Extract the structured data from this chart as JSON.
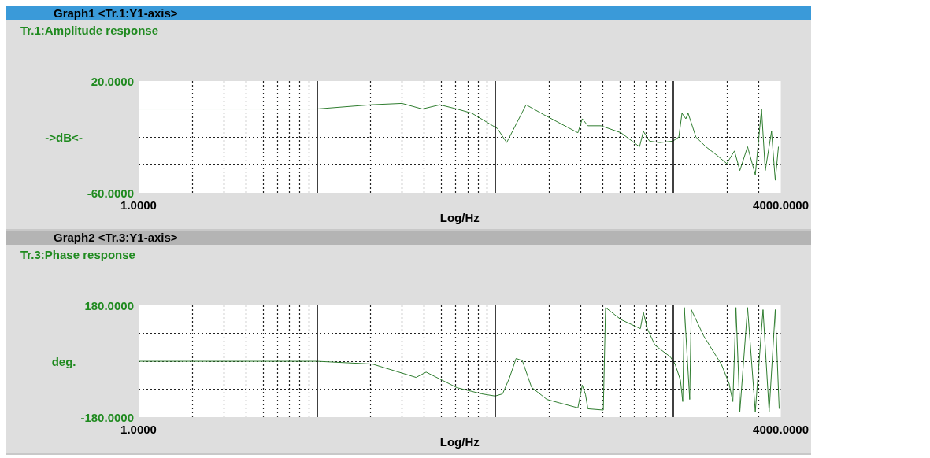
{
  "chart_data": [
    {
      "type": "line",
      "title": "Graph1 <Tr.1:Y1-axis>",
      "subtitle": "Tr.1:Amplitude response",
      "xlabel": "Log/Hz",
      "ylabel": "->dB<-",
      "color": "#2f7d2f",
      "log": "x",
      "grid": true,
      "x": [
        1,
        2,
        5,
        10,
        20,
        30,
        39,
        49,
        61,
        74,
        97,
        103,
        116,
        125,
        149,
        187,
        291,
        308,
        331,
        392,
        508,
        645,
        678,
        734,
        836,
        991,
        1072,
        1116,
        1173,
        1208,
        1336,
        1520,
        1748,
        1990,
        2198,
        2357,
        2604,
        2877,
        3118,
        3273,
        3548,
        3724,
        3880
      ],
      "values": [
        0,
        0,
        0,
        0,
        3,
        4,
        0,
        3,
        0,
        -3,
        -12,
        -14,
        -24,
        -16,
        3,
        -4,
        -17,
        -7,
        -12,
        -12,
        -17,
        -27,
        -16,
        -23,
        -24,
        -23,
        -20,
        -3,
        -7,
        -3,
        -20,
        -27,
        -33,
        -39,
        -30,
        -44,
        -27,
        -47,
        0,
        -44,
        -16,
        -51,
        -27
      ],
      "xlim": [
        1,
        4000
      ],
      "ylim": [
        -60,
        20
      ],
      "xticks": [
        {
          "value": 1,
          "label": "1.0000"
        },
        {
          "value": 2,
          "label": null
        },
        {
          "value": 3,
          "label": null
        },
        {
          "value": 4,
          "label": null
        },
        {
          "value": 5,
          "label": null
        },
        {
          "value": 6,
          "label": null
        },
        {
          "value": 7,
          "label": null
        },
        {
          "value": 8,
          "label": null
        },
        {
          "value": 9,
          "label": null
        },
        {
          "value": 20,
          "label": null
        },
        {
          "value": 30,
          "label": null
        },
        {
          "value": 40,
          "label": null
        },
        {
          "value": 50,
          "label": null
        },
        {
          "value": 60,
          "label": null
        },
        {
          "value": 70,
          "label": null
        },
        {
          "value": 80,
          "label": null
        },
        {
          "value": 90,
          "label": null
        },
        {
          "value": 200,
          "label": null
        },
        {
          "value": 300,
          "label": null
        },
        {
          "value": 400,
          "label": null
        },
        {
          "value": 500,
          "label": null
        },
        {
          "value": 600,
          "label": null
        },
        {
          "value": 700,
          "label": null
        },
        {
          "value": 800,
          "label": null
        },
        {
          "value": 900,
          "label": null
        },
        {
          "value": 2000,
          "label": null
        },
        {
          "value": 3000,
          "label": null
        },
        {
          "value": 4000,
          "label": "4000.0000"
        }
      ],
      "yticks": [
        {
          "value": 20,
          "label": "20.0000"
        },
        {
          "value": 0,
          "label": null
        },
        {
          "value": -20,
          "label": null
        },
        {
          "value": -40,
          "label": null
        },
        {
          "value": -60,
          "label": "-60.0000"
        }
      ],
      "ref_lines": [
        {
          "axis": "x",
          "value": 10,
          "color": "#000000",
          "line_style": "solid"
        },
        {
          "axis": "x",
          "value": 100,
          "color": "#000000",
          "line_style": "solid"
        },
        {
          "axis": "x",
          "value": 1000,
          "color": "#000000",
          "line_style": "solid"
        }
      ]
    },
    {
      "type": "line",
      "title": "Graph2 <Tr.3:Y1-axis>",
      "subtitle": "Tr.3:Phase response",
      "xlabel": "Log/Hz",
      "ylabel": "deg.",
      "color": "#2f7d2f",
      "log": "x",
      "grid": true,
      "x": [
        1,
        2,
        5,
        10,
        20.5,
        36,
        41,
        61,
        84,
        100,
        110,
        120,
        131,
        142,
        160,
        195,
        229,
        291,
        308,
        321,
        331,
        404,
        416,
        508,
        652,
        678,
        713,
        787,
        961,
        1021,
        1094,
        1127,
        1151,
        1233,
        1259,
        1476,
        1679,
        1854,
        2049,
        2153,
        2242,
        2357,
        2604,
        2877,
        3179,
        3440,
        3724,
        3917
      ],
      "values": [
        0,
        0,
        0,
        0,
        -9,
        -52,
        -35,
        -85,
        -105,
        -112,
        -105,
        -55,
        9,
        2,
        -84,
        -123,
        -134,
        -150,
        -77,
        -107,
        -153,
        -157,
        173,
        134,
        105,
        157,
        105,
        52,
        14,
        -9,
        -61,
        -130,
        173,
        -123,
        166,
        82,
        30,
        -9,
        -71,
        -130,
        173,
        -162,
        173,
        -162,
        166,
        -162,
        166,
        -153
      ],
      "xlim": [
        1,
        4000
      ],
      "ylim": [
        -180,
        180
      ],
      "xticks": [
        {
          "value": 1,
          "label": "1.0000"
        },
        {
          "value": 2,
          "label": null
        },
        {
          "value": 3,
          "label": null
        },
        {
          "value": 4,
          "label": null
        },
        {
          "value": 5,
          "label": null
        },
        {
          "value": 6,
          "label": null
        },
        {
          "value": 7,
          "label": null
        },
        {
          "value": 8,
          "label": null
        },
        {
          "value": 9,
          "label": null
        },
        {
          "value": 20,
          "label": null
        },
        {
          "value": 30,
          "label": null
        },
        {
          "value": 40,
          "label": null
        },
        {
          "value": 50,
          "label": null
        },
        {
          "value": 60,
          "label": null
        },
        {
          "value": 70,
          "label": null
        },
        {
          "value": 80,
          "label": null
        },
        {
          "value": 90,
          "label": null
        },
        {
          "value": 200,
          "label": null
        },
        {
          "value": 300,
          "label": null
        },
        {
          "value": 400,
          "label": null
        },
        {
          "value": 500,
          "label": null
        },
        {
          "value": 600,
          "label": null
        },
        {
          "value": 700,
          "label": null
        },
        {
          "value": 800,
          "label": null
        },
        {
          "value": 900,
          "label": null
        },
        {
          "value": 2000,
          "label": null
        },
        {
          "value": 3000,
          "label": null
        },
        {
          "value": 4000,
          "label": "4000.0000"
        }
      ],
      "yticks": [
        {
          "value": 180,
          "label": "180.0000"
        },
        {
          "value": 90,
          "label": null
        },
        {
          "value": 0,
          "label": null
        },
        {
          "value": -90,
          "label": null
        },
        {
          "value": -180,
          "label": "-180.0000"
        }
      ],
      "ref_lines": [
        {
          "axis": "x",
          "value": 10,
          "color": "#000000",
          "line_style": "solid"
        },
        {
          "axis": "x",
          "value": 100,
          "color": "#000000",
          "line_style": "solid"
        },
        {
          "axis": "x",
          "value": 1000,
          "color": "#000000",
          "line_style": "solid"
        }
      ]
    }
  ]
}
